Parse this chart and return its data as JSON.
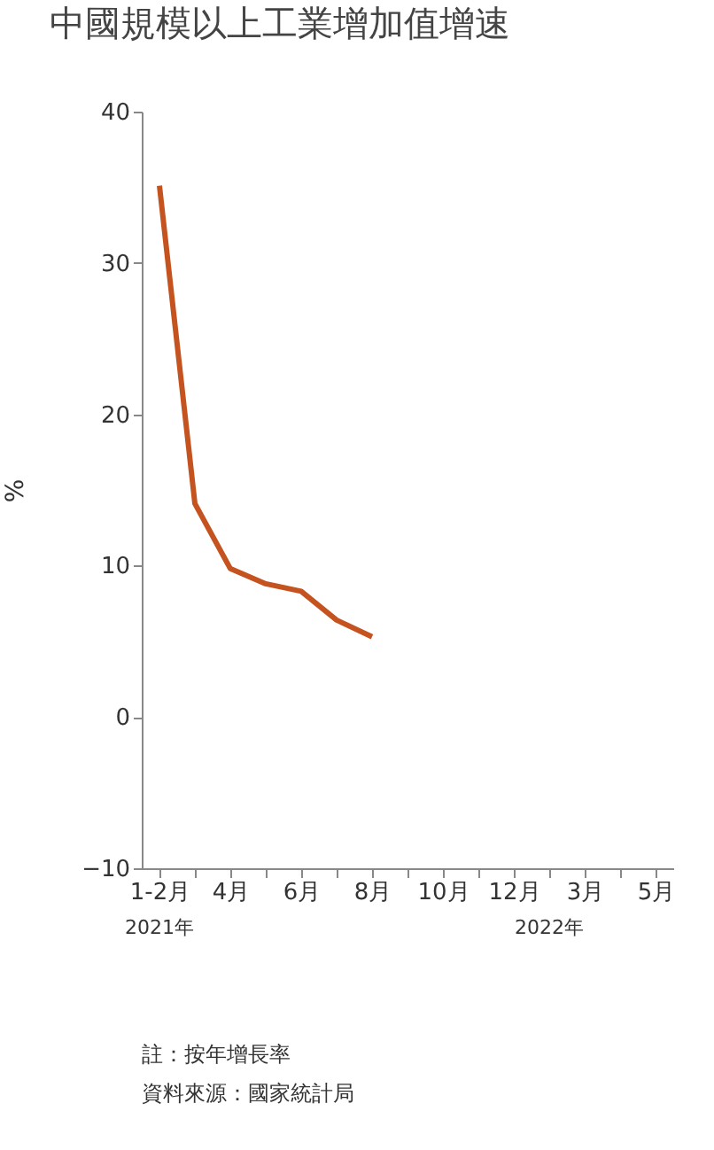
{
  "chart_data": {
    "type": "line",
    "title": "中國規模以上工業增加值增速",
    "ylabel": "%",
    "categories": [
      "1-2月",
      null,
      "4月",
      null,
      "6月",
      null,
      "8月",
      null,
      "10月",
      null,
      "12月",
      null,
      "3月",
      null,
      "5月"
    ],
    "values": [
      35.1,
      14.1,
      9.8,
      8.8,
      8.3,
      6.4,
      5.3,
      null,
      null,
      null,
      null,
      null,
      null,
      null,
      null
    ],
    "color": "#c4531f",
    "ylim": [
      -10,
      40
    ],
    "yticks": [
      -10,
      0,
      10,
      20,
      30,
      40
    ],
    "grid": false,
    "marker": "none",
    "line_style": "solid",
    "annotations": [
      "2021年",
      "2022年",
      "註：按年增長率",
      "資料來源：國家統計局"
    ]
  }
}
